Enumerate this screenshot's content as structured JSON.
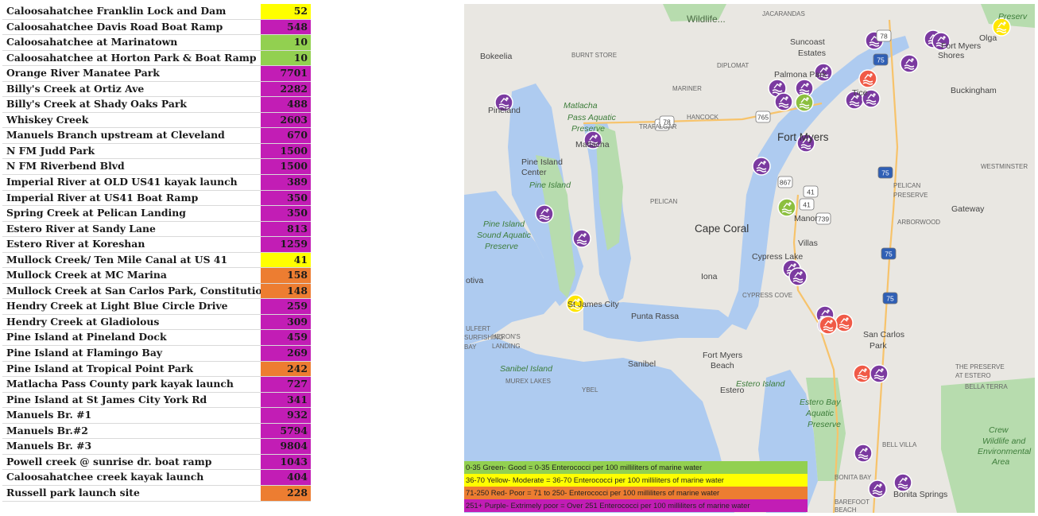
{
  "colors": {
    "green": "#92d050",
    "yellow": "#ffff00",
    "orange": "#ed7d31",
    "purple": "#c21db5",
    "water": "#aecbf0",
    "park": "#b7dcae",
    "land": "#e9e7e2"
  },
  "sites": [
    {
      "name": "Caloosahatchee Franklin Lock and Dam",
      "value": "52",
      "rating": "yellow"
    },
    {
      "name": "Caloosahatchee Davis Road Boat Ramp",
      "value": "548",
      "rating": "purple"
    },
    {
      "name": "Caloosahatchee at Marinatown",
      "value": "10",
      "rating": "green"
    },
    {
      "name": "Caloosahatchee at Horton Park & Boat Ramp",
      "value": "10",
      "rating": "green"
    },
    {
      "name": "Orange River Manatee Park",
      "value": "7701",
      "rating": "purple"
    },
    {
      "name": "Billy's Creek at Ortiz Ave",
      "value": "2282",
      "rating": "purple"
    },
    {
      "name": "Billy's Creek at Shady Oaks Park",
      "value": "488",
      "rating": "purple"
    },
    {
      "name": "Whiskey Creek",
      "value": "2603",
      "rating": "purple"
    },
    {
      "name": "Manuels Branch upstream at Cleveland",
      "value": "670",
      "rating": "purple"
    },
    {
      "name": "N FM Judd Park",
      "value": "1500",
      "rating": "purple"
    },
    {
      "name": "N FM Riverbend Blvd",
      "value": "1500",
      "rating": "purple"
    },
    {
      "name": "Imperial River at OLD US41 kayak launch",
      "value": "389",
      "rating": "purple"
    },
    {
      "name": "Imperial River at US41 Boat Ramp",
      "value": "350",
      "rating": "purple"
    },
    {
      "name": "Spring Creek at Pelican Landing",
      "value": "350",
      "rating": "purple"
    },
    {
      "name": "Estero River at Sandy Lane",
      "value": "813",
      "rating": "purple"
    },
    {
      "name": "Estero River at Koreshan",
      "value": "1259",
      "rating": "purple"
    },
    {
      "name": "Mullock Creek/ Ten Mile Canal at US 41",
      "value": "41",
      "rating": "yellow"
    },
    {
      "name": "Mullock Creek at MC Marina",
      "value": "158",
      "rating": "orange"
    },
    {
      "name": "Mullock Creek at San Carlos Park, Constitutio",
      "value": "148",
      "rating": "orange"
    },
    {
      "name": "Hendry Creek at Light Blue Circle Drive",
      "value": "259",
      "rating": "purple"
    },
    {
      "name": "Hendry Creek at Gladiolous",
      "value": "309",
      "rating": "purple"
    },
    {
      "name": "Pine Island at Pineland Dock",
      "value": "459",
      "rating": "purple"
    },
    {
      "name": "Pine Island at Flamingo Bay",
      "value": "269",
      "rating": "purple"
    },
    {
      "name": "Pine Island at Tropical Point Park",
      "value": "242",
      "rating": "orange"
    },
    {
      "name": "Matlacha Pass County park kayak launch",
      "value": "727",
      "rating": "purple"
    },
    {
      "name": "Pine Island at St James City York Rd",
      "value": "341",
      "rating": "purple"
    },
    {
      "name": "Manuels Br. #1",
      "value": "932",
      "rating": "purple"
    },
    {
      "name": "Manuels Br.#2",
      "value": "5794",
      "rating": "purple"
    },
    {
      "name": "Manuels Br. #3",
      "value": "9804",
      "rating": "purple"
    },
    {
      "name": "Powell creek @ sunrise dr. boat ramp",
      "value": "1043",
      "rating": "purple"
    },
    {
      "name": "Caloosahatchee creek kayak launch",
      "value": "404",
      "rating": "purple"
    },
    {
      "name": "Russell park launch site",
      "value": "228",
      "rating": "orange"
    }
  ],
  "map": {
    "places": [
      {
        "text": "Wildlife...",
        "size": "large"
      },
      {
        "text": "JACARANDAS",
        "size": "road"
      },
      {
        "text": "Preserv",
        "size": "park"
      },
      {
        "text": "Bokeelia",
        "size": "small"
      },
      {
        "text": "BURNT STORE",
        "size": "road"
      },
      {
        "text": "Suncoast",
        "size": "small"
      },
      {
        "text": "Estates",
        "size": "small"
      },
      {
        "text": "Olga",
        "size": "small"
      },
      {
        "text": "Fort Myers",
        "size": "small"
      },
      {
        "text": "Shores",
        "size": "small"
      },
      {
        "text": "DIPLOMAT",
        "size": "road"
      },
      {
        "text": "Palmona Park",
        "size": "small"
      },
      {
        "text": "Buckingham",
        "size": "small"
      },
      {
        "text": "MARINER",
        "size": "road"
      },
      {
        "text": "Tice",
        "size": "small"
      },
      {
        "text": "Matlacha",
        "size": "park"
      },
      {
        "text": "Pass Aquatic",
        "size": "park"
      },
      {
        "text": "Preserve",
        "size": "park"
      },
      {
        "text": "Pineland",
        "size": "small"
      },
      {
        "text": "HANCOCK",
        "size": "road"
      },
      {
        "text": "Fort Myers",
        "size": "city"
      },
      {
        "text": "Matlacha",
        "size": "small"
      },
      {
        "text": "TRAFALGAR",
        "size": "road"
      },
      {
        "text": "Pine Island",
        "size": "small"
      },
      {
        "text": "Center",
        "size": "small"
      },
      {
        "text": "WESTMINSTER",
        "size": "road"
      },
      {
        "text": "Pine Island",
        "size": "park"
      },
      {
        "text": "PELICAN",
        "size": "road"
      },
      {
        "text": "PELICAN",
        "size": "road"
      },
      {
        "text": "PRESERVE",
        "size": "road"
      },
      {
        "text": "Gateway",
        "size": "small"
      },
      {
        "text": "Manor",
        "size": "small"
      },
      {
        "text": "Pine Island",
        "size": "park"
      },
      {
        "text": "Sound Aquatic",
        "size": "park"
      },
      {
        "text": "Preserve",
        "size": "park"
      },
      {
        "text": "Cape Coral",
        "size": "city"
      },
      {
        "text": "ARBORWOOD",
        "size": "road"
      },
      {
        "text": "Villas",
        "size": "small"
      },
      {
        "text": "Cypress Lake",
        "size": "small"
      },
      {
        "text": "Iona",
        "size": "small"
      },
      {
        "text": "CYPRESS COVE",
        "size": "road"
      },
      {
        "text": "St James City",
        "size": "small"
      },
      {
        "text": "Punta Rassa",
        "size": "small"
      },
      {
        "text": "San Carlos",
        "size": "small"
      },
      {
        "text": "Park",
        "size": "small"
      },
      {
        "text": "Fort Myers",
        "size": "small"
      },
      {
        "text": "Beach",
        "size": "small"
      },
      {
        "text": "Sanibel",
        "size": "small"
      },
      {
        "text": "Sanibel Island",
        "size": "park"
      },
      {
        "text": "Estero Island",
        "size": "park"
      },
      {
        "text": "THE PRESERVE",
        "size": "road"
      },
      {
        "text": "AT ESTERO",
        "size": "road"
      },
      {
        "text": "BELLA TERRA",
        "size": "road"
      },
      {
        "text": "MUREX LAKES",
        "size": "road"
      },
      {
        "text": "YBEL",
        "size": "road"
      },
      {
        "text": "Estero Bay",
        "size": "park"
      },
      {
        "text": "Aquatic",
        "size": "park"
      },
      {
        "text": "Preserve",
        "size": "park"
      },
      {
        "text": "Crew",
        "size": "park"
      },
      {
        "text": "Wildlife and",
        "size": "park"
      },
      {
        "text": "Environmental",
        "size": "park"
      },
      {
        "text": "Area",
        "size": "park"
      },
      {
        "text": "BELL VILLA",
        "size": "road"
      },
      {
        "text": "BONITA BAY",
        "size": "road"
      },
      {
        "text": "Bonita Springs",
        "size": "small"
      },
      {
        "text": "BAREFOOT",
        "size": "road"
      },
      {
        "text": "BEACH",
        "size": "road"
      },
      {
        "text": "SURFISHING",
        "size": "road"
      },
      {
        "text": "BAY",
        "size": "road"
      },
      {
        "text": "ULFERT",
        "size": "road"
      },
      {
        "text": "HERON'S",
        "size": "road"
      },
      {
        "text": "LANDING",
        "size": "road"
      },
      {
        "text": "otiva",
        "size": "small"
      },
      {
        "text": "Estero",
        "size": "small"
      }
    ],
    "shields": [
      "78",
      "75",
      "78",
      "765",
      "41",
      "75",
      "867",
      "41",
      "739",
      "75",
      "75",
      "78"
    ],
    "markers": [
      "yellow",
      "purple",
      "purple",
      "purple",
      "purple",
      "purple",
      "orange",
      "purple",
      "purple",
      "purple",
      "purple",
      "purple",
      "green",
      "purple",
      "purple",
      "purple",
      "purple",
      "green",
      "purple",
      "purple",
      "purple",
      "purple",
      "purple",
      "yellow",
      "orange",
      "orange",
      "purple",
      "purple",
      "purple",
      "purple",
      "orange",
      "purple"
    ],
    "marker_icon": "swimmer-icon"
  },
  "legend": [
    {
      "text": "0-35   Green- Good = 0-35 Enterococci per 100 milliliters of marine water",
      "color": "#92d050"
    },
    {
      "text": "36-70    Yellow- Moderate = 36-70 Enterococci per 100 milliliters of marine water",
      "color": "#ffff00"
    },
    {
      "text": "71-250   Red- Poor = 71 to 250-  Enterococci per 100 milliliters of marine water",
      "color": "#ed7d31"
    },
    {
      "text": "251+   Purple- Extrimely poor = Over 251 Enterococci per 100 milliliters of marine water",
      "color": "#c21db5"
    }
  ]
}
